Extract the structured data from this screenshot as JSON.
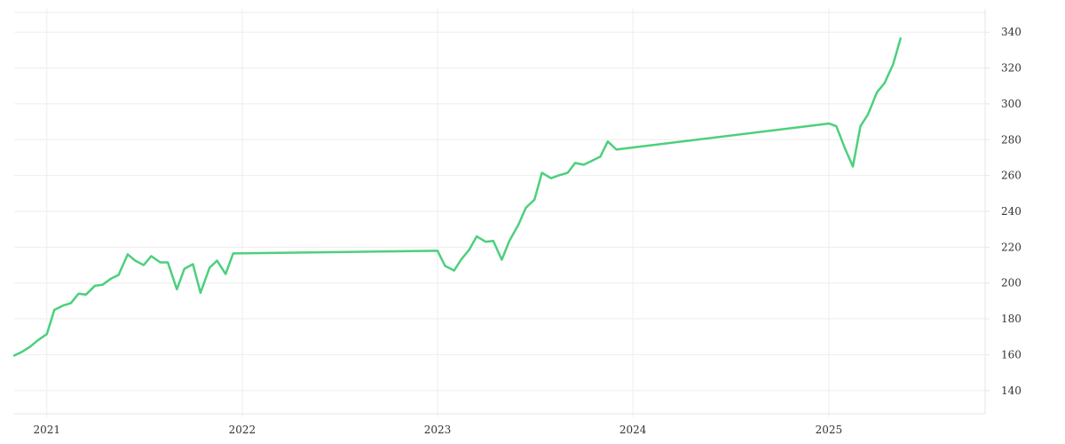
{
  "chart_data": {
    "type": "line",
    "title": "",
    "xlabel": "",
    "ylabel": "",
    "grid": true,
    "y_axis_side": "right",
    "ylim": [
      127,
      351
    ],
    "xlim": [
      "2020-11-01",
      "2025-10-20"
    ],
    "x_ticks": [
      "2021",
      "2022",
      "2023",
      "2024",
      "2025"
    ],
    "y_ticks": [
      140,
      160,
      180,
      200,
      220,
      240,
      260,
      280,
      300,
      320,
      340
    ],
    "series": [
      {
        "color": "#4cd07d",
        "points": [
          [
            "2020-11-01",
            159.5
          ],
          [
            "2020-11-15",
            161.5
          ],
          [
            "2020-12-01",
            164.5
          ],
          [
            "2020-12-15",
            168
          ],
          [
            "2021-01-01",
            171.5
          ],
          [
            "2021-01-15",
            185
          ],
          [
            "2021-02-01",
            187.5
          ],
          [
            "2021-02-15",
            188.8
          ],
          [
            "2021-03-01",
            194
          ],
          [
            "2021-03-15",
            193.5
          ],
          [
            "2021-04-01",
            198.5
          ],
          [
            "2021-04-15",
            199
          ],
          [
            "2021-05-01",
            202.5
          ],
          [
            "2021-05-15",
            204.5
          ],
          [
            "2021-06-01",
            216
          ],
          [
            "2021-06-15",
            212.5
          ],
          [
            "2021-07-01",
            210
          ],
          [
            "2021-07-15",
            215
          ],
          [
            "2021-08-01",
            211.5
          ],
          [
            "2021-08-15",
            211.5
          ],
          [
            "2021-09-01",
            196.5
          ],
          [
            "2021-09-15",
            208
          ],
          [
            "2021-10-01",
            210.5
          ],
          [
            "2021-10-15",
            194.5
          ],
          [
            "2021-11-01",
            208.5
          ],
          [
            "2021-11-15",
            212.5
          ],
          [
            "2021-12-01",
            205
          ],
          [
            "2021-12-15",
            216.5
          ],
          [
            "2023-01-01",
            218
          ],
          [
            "2023-01-15",
            209.5
          ],
          [
            "2023-02-01",
            207
          ],
          [
            "2023-02-15",
            213.5
          ],
          [
            "2023-03-01",
            218.5
          ],
          [
            "2023-03-15",
            226
          ],
          [
            "2023-04-01",
            223
          ],
          [
            "2023-04-15",
            223.5
          ],
          [
            "2023-05-01",
            213
          ],
          [
            "2023-05-15",
            223.5
          ],
          [
            "2023-06-01",
            232.5
          ],
          [
            "2023-06-15",
            242
          ],
          [
            "2023-07-01",
            246.5
          ],
          [
            "2023-07-15",
            261.5
          ],
          [
            "2023-08-01",
            258.5
          ],
          [
            "2023-08-15",
            260
          ],
          [
            "2023-09-01",
            261.5
          ],
          [
            "2023-09-15",
            267
          ],
          [
            "2023-10-01",
            266
          ],
          [
            "2023-10-15",
            268
          ],
          [
            "2023-11-01",
            270.5
          ],
          [
            "2023-11-15",
            279
          ],
          [
            "2023-12-01",
            274.5
          ],
          [
            "2025-01-01",
            289
          ],
          [
            "2025-01-15",
            287.5
          ],
          [
            "2025-02-01",
            274.5
          ],
          [
            "2025-02-15",
            265
          ],
          [
            "2025-03-01",
            287.5
          ],
          [
            "2025-03-15",
            294
          ],
          [
            "2025-04-01",
            306.5
          ],
          [
            "2025-04-15",
            311.5
          ],
          [
            "2025-05-01",
            322
          ],
          [
            "2025-05-15",
            336.5
          ]
        ]
      }
    ]
  }
}
